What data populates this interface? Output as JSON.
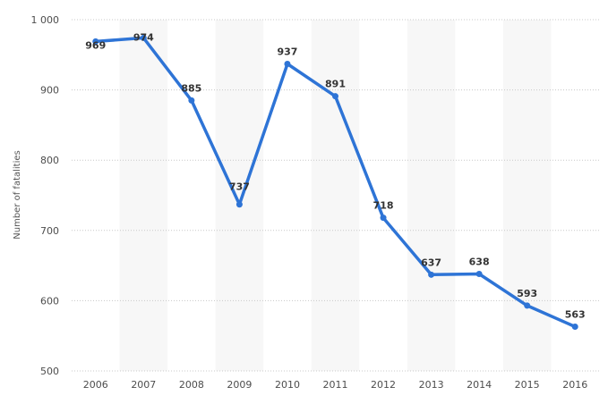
{
  "chart_data": {
    "type": "line",
    "title": "",
    "xlabel": "",
    "ylabel": "Number of fatalities",
    "categories": [
      "2006",
      "2007",
      "2008",
      "2009",
      "2010",
      "2011",
      "2012",
      "2013",
      "2014",
      "2015",
      "2016"
    ],
    "series": [
      {
        "values": [
          969,
          974,
          885,
          737,
          937,
          891,
          718,
          637,
          638,
          593,
          563
        ]
      }
    ],
    "ylim": [
      500,
      1000
    ],
    "yticks": [
      500,
      600,
      700,
      800,
      900,
      1000
    ],
    "ytick_labels": [
      "500",
      "600",
      "700",
      "800",
      "900",
      "1 000"
    ],
    "grid": "horizontal dotted",
    "band_shading": "alternating columns",
    "colors": {
      "line": "#2e74d6",
      "band": "#f7f7f7",
      "grid": "#c8c8c8"
    }
  }
}
